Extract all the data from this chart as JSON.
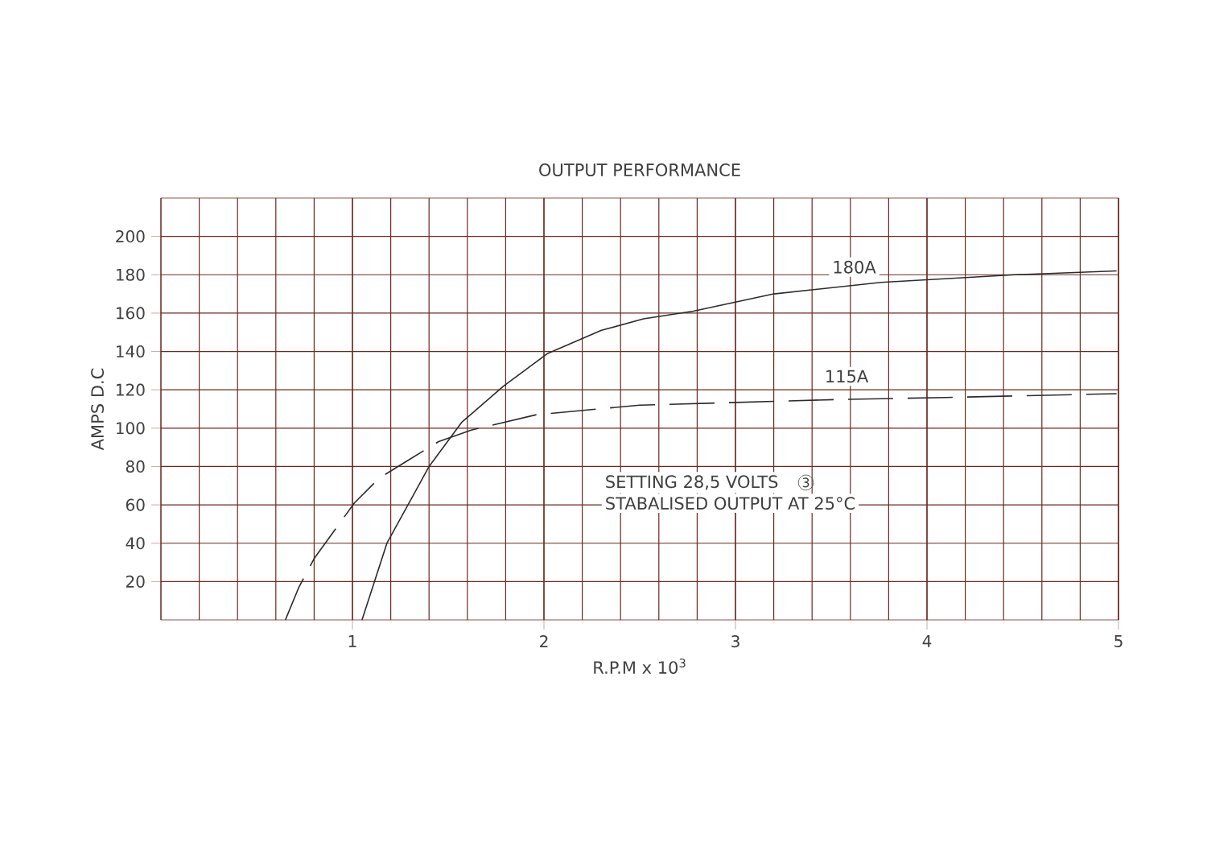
{
  "chart_data": {
    "type": "line",
    "title": "OUTPUT PERFORMANCE",
    "xlabel": "R.P.M x 10$^{3}$",
    "ylabel": "AMPS D.C",
    "xlim": [
      0,
      5
    ],
    "ylim": [
      0,
      220
    ],
    "xticks": [
      1,
      2,
      3,
      4,
      5
    ],
    "yticks": [
      20,
      40,
      60,
      80,
      100,
      120,
      140,
      160,
      180,
      200
    ],
    "grid": true,
    "legend": false,
    "marker": "none",
    "series": [
      {
        "name": "180A",
        "color": "#2b2b2b",
        "line_style": "solid",
        "x": [
          1.05,
          1.18,
          1.4,
          1.57,
          1.79,
          2.02,
          2.3,
          2.52,
          2.78,
          3.2,
          3.76,
          4.46,
          4.99
        ],
        "values": [
          0,
          40,
          80,
          103,
          122,
          139,
          151,
          157,
          161,
          170,
          176,
          180,
          182
        ]
      },
      {
        "name": "115A",
        "color": "#2b2b2b",
        "line_style": "dashed",
        "x": [
          0.65,
          0.72,
          0.8,
          1.01,
          1.14,
          1.45,
          1.62,
          1.96,
          2.5,
          3.56,
          4.1,
          4.99
        ],
        "values": [
          0,
          17,
          32,
          61,
          74,
          93,
          99,
          107,
          112,
          115,
          116,
          118
        ]
      }
    ],
    "annotations": [
      "SETTING 28,5 VOLTS",
      "3",
      "STABALISED OUTPUT AT 25°C"
    ]
  }
}
